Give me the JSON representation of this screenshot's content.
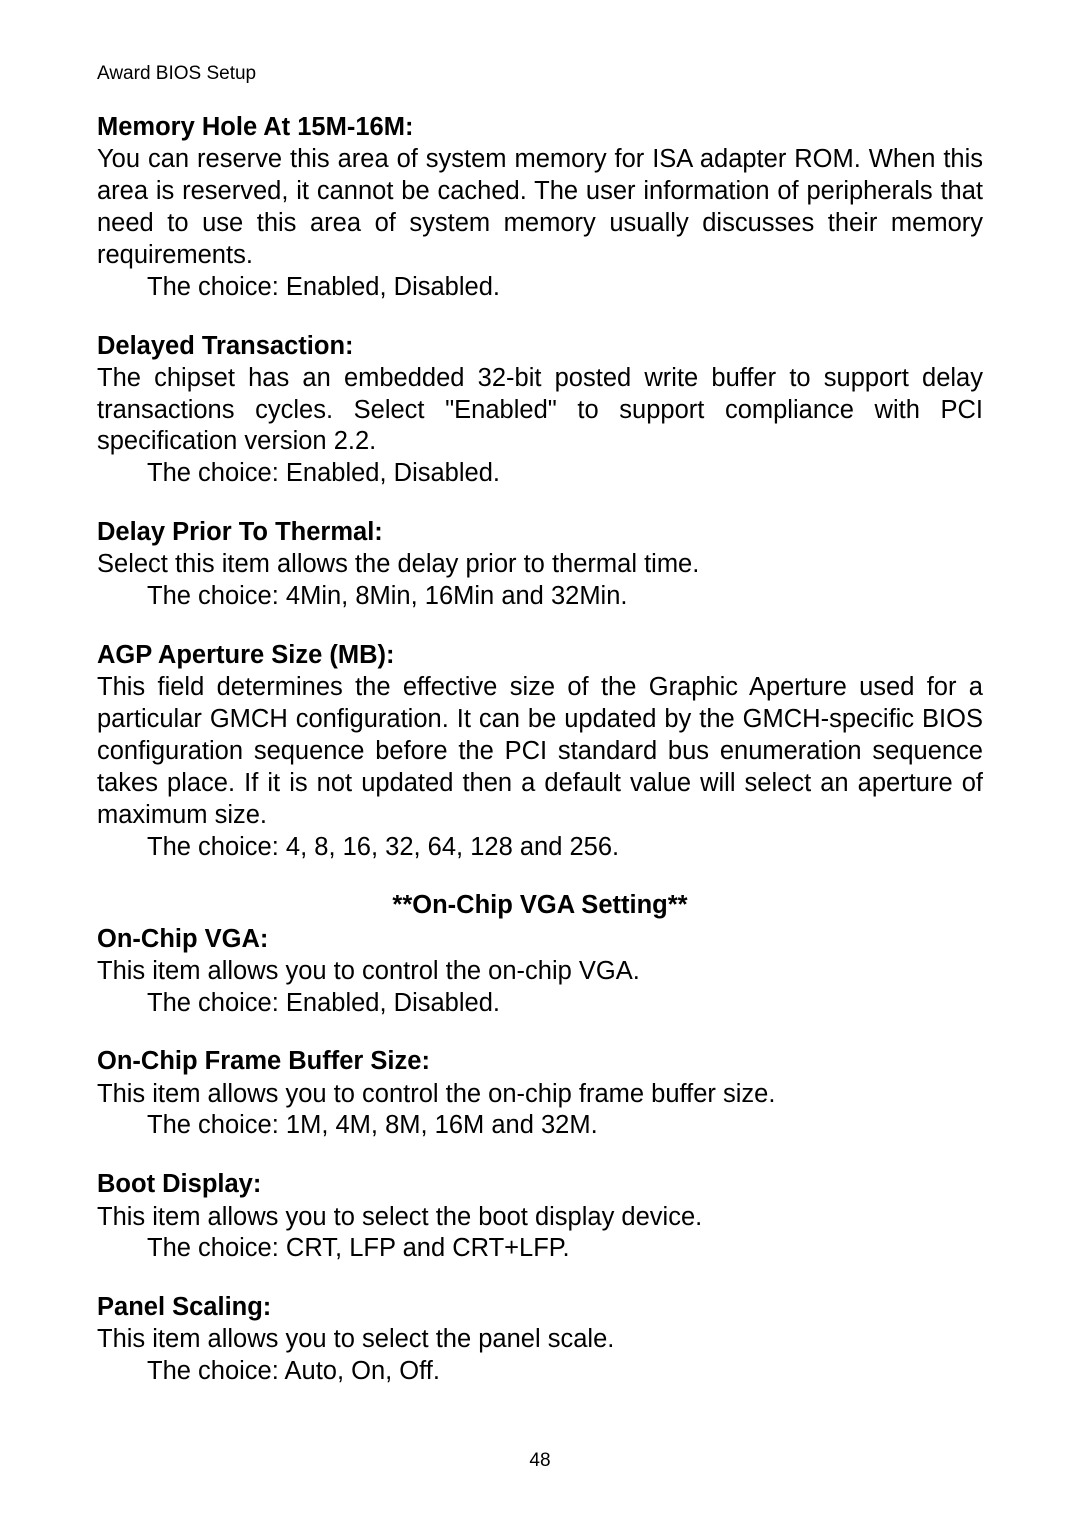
{
  "header": "Award BIOS Setup",
  "sections": {
    "memoryHole": {
      "title": "Memory Hole At 15M-16M:",
      "body": "You can reserve this area of system memory for ISA adapter ROM.  When this area is reserved, it cannot be cached.  The user information of peripherals that need to use this area of system memory usually discusses their memory requirements.",
      "choice": "The choice: Enabled, Disabled."
    },
    "delayedTransaction": {
      "title": "Delayed Transaction:",
      "body": "The chipset has an embedded 32-bit posted write buffer to support delay transactions cycles.  Select \"Enabled\" to support compliance with PCI specification version 2.2.",
      "choice": "The choice: Enabled, Disabled."
    },
    "delayPriorThermal": {
      "title": "Delay Prior To Thermal:",
      "body": "Select this item allows the delay prior to thermal time.",
      "choice": "The choice: 4Min, 8Min, 16Min and 32Min."
    },
    "agpAperture": {
      "title": "AGP Aperture Size (MB):",
      "body": "This field determines the effective size of the Graphic Aperture used for a particular GMCH configuration.  It can be updated by the GMCH-specific BIOS configuration sequence before the PCI standard bus enumeration sequence takes place.  If it is not updated then a default value will select an aperture of maximum size.",
      "choice": "The choice: 4, 8, 16, 32, 64, 128 and 256."
    },
    "vgaSettingHeader": "**On-Chip VGA Setting**",
    "onChipVga": {
      "title": "On-Chip VGA:",
      "body": "This item allows you to control the on-chip VGA.",
      "choice": "The choice: Enabled, Disabled."
    },
    "frameBuffer": {
      "title": "On-Chip Frame Buffer Size:",
      "body": "This item allows you to control the on-chip frame buffer size.",
      "choice": "The choice: 1M, 4M, 8M, 16M and 32M."
    },
    "bootDisplay": {
      "title": "Boot Display:",
      "body": "This item allows you to select the boot display device.",
      "choice": "The choice: CRT, LFP and CRT+LFP."
    },
    "panelScaling": {
      "title": "Panel Scaling:",
      "body": "This item allows you to select the panel scale.",
      "choice": "The choice: Auto, On, Off."
    }
  },
  "pageNumber": "48"
}
